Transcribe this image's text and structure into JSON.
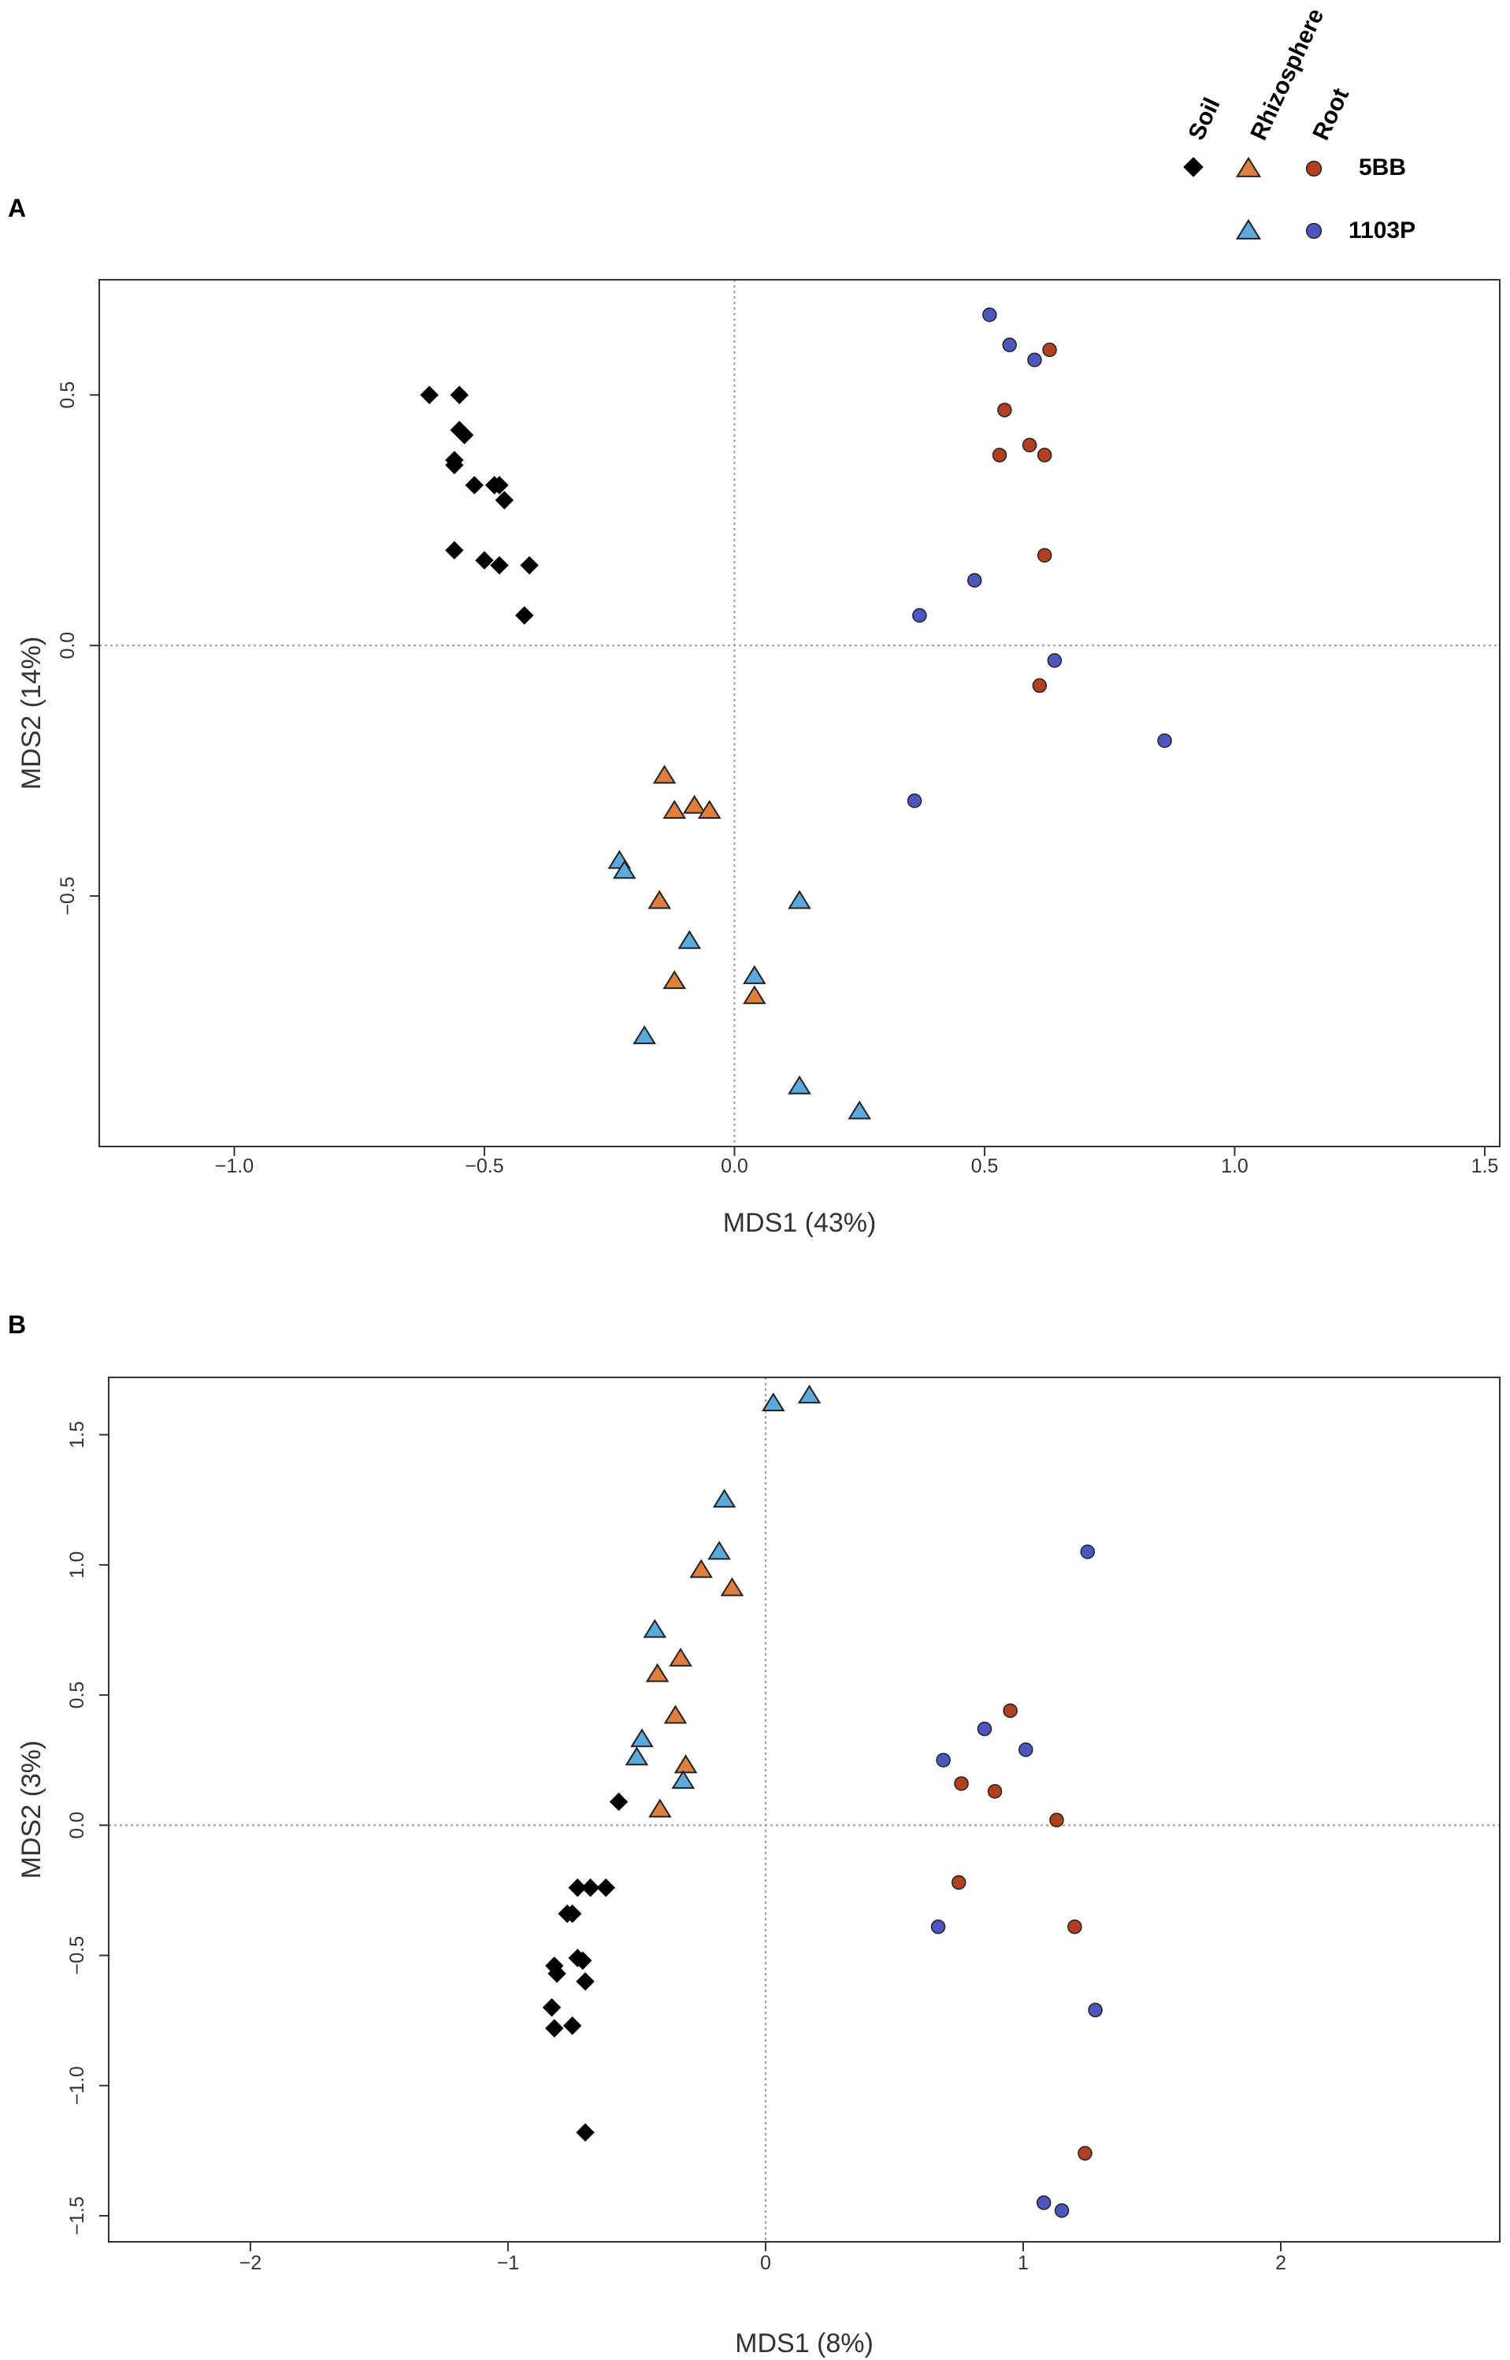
{
  "legend": {
    "headers": [
      "Soil",
      "Rhizosphere",
      "Root"
    ],
    "rows": [
      {
        "label": "5BB",
        "markers": [
          "soil",
          "rhizo_5BB",
          "root_5BB"
        ]
      },
      {
        "label": "1103P",
        "markers": [
          "rhizo_1103P",
          "root_1103P"
        ]
      }
    ]
  },
  "colors": {
    "soil": "#000000",
    "rhizo_5BB": "#E07F3C",
    "rhizo_1103P": "#5BAADE",
    "root_5BB": "#B2401F",
    "root_1103P": "#4D56BF"
  },
  "chart_data": [
    {
      "panel": "A",
      "type": "scatter",
      "xlabel": "MDS1 (43%)",
      "ylabel": "MDS2 (14%)",
      "xlim": [
        -1.27,
        1.53
      ],
      "ylim": [
        -1.0,
        0.73
      ],
      "xticks": [
        -1.0,
        -0.5,
        0.0,
        0.5,
        1.0,
        1.5
      ],
      "xtick_labels": [
        "−1.0",
        "−0.5",
        "0.0",
        "0.5",
        "1.0",
        "1.5"
      ],
      "yticks": [
        0.5,
        0.0,
        -0.5
      ],
      "ytick_labels": [
        "0.5",
        "0.0",
        "−0.5"
      ],
      "reference_lines": {
        "x": 0,
        "y": 0
      },
      "series": [
        {
          "name": "Soil",
          "marker": "diamond",
          "color_key": "soil",
          "points": [
            [
              -0.61,
              0.5
            ],
            [
              -0.55,
              0.5
            ],
            [
              -0.55,
              0.43
            ],
            [
              -0.54,
              0.42
            ],
            [
              -0.56,
              0.37
            ],
            [
              -0.56,
              0.36
            ],
            [
              -0.52,
              0.32
            ],
            [
              -0.48,
              0.32
            ],
            [
              -0.47,
              0.32
            ],
            [
              -0.46,
              0.29
            ],
            [
              -0.56,
              0.19
            ],
            [
              -0.5,
              0.17
            ],
            [
              -0.47,
              0.16
            ],
            [
              -0.41,
              0.16
            ],
            [
              -0.42,
              0.06
            ]
          ]
        },
        {
          "name": "Rhizosphere 5BB",
          "marker": "triangle",
          "color_key": "rhizo_5BB",
          "points": [
            [
              -0.14,
              -0.26
            ],
            [
              -0.12,
              -0.33
            ],
            [
              -0.08,
              -0.32
            ],
            [
              -0.05,
              -0.33
            ],
            [
              -0.15,
              -0.51
            ],
            [
              -0.12,
              -0.67
            ],
            [
              0.04,
              -0.7
            ]
          ]
        },
        {
          "name": "Rhizosphere 1103P",
          "marker": "triangle",
          "color_key": "rhizo_1103P",
          "points": [
            [
              -0.23,
              -0.43
            ],
            [
              -0.22,
              -0.45
            ],
            [
              -0.09,
              -0.59
            ],
            [
              -0.18,
              -0.78
            ],
            [
              0.04,
              -0.66
            ],
            [
              0.13,
              -0.51
            ],
            [
              0.13,
              -0.88
            ],
            [
              0.25,
              -0.93
            ]
          ]
        },
        {
          "name": "Root 5BB",
          "marker": "circle",
          "color_key": "root_5BB",
          "points": [
            [
              0.63,
              0.59
            ],
            [
              0.54,
              0.47
            ],
            [
              0.59,
              0.4
            ],
            [
              0.53,
              0.38
            ],
            [
              0.62,
              0.38
            ],
            [
              0.62,
              0.18
            ],
            [
              0.61,
              -0.08
            ]
          ]
        },
        {
          "name": "Root 1103P",
          "marker": "circle",
          "color_key": "root_1103P",
          "points": [
            [
              0.51,
              0.66
            ],
            [
              0.55,
              0.6
            ],
            [
              0.6,
              0.57
            ],
            [
              0.48,
              0.13
            ],
            [
              0.37,
              0.06
            ],
            [
              0.64,
              -0.03
            ],
            [
              0.86,
              -0.19
            ],
            [
              0.36,
              -0.31
            ]
          ]
        }
      ]
    },
    {
      "panel": "B",
      "type": "scatter",
      "xlabel": "MDS1 (8%)",
      "ylabel": "MDS2 (3%)",
      "xlim": [
        -2.55,
        2.85
      ],
      "ylim": [
        -1.6,
        1.72
      ],
      "xticks": [
        -2,
        -1,
        0,
        1,
        2
      ],
      "xtick_labels": [
        "−2",
        "−1",
        "0",
        "1",
        "2"
      ],
      "yticks": [
        1.5,
        1.0,
        0.5,
        0.0,
        -0.5,
        -1.0,
        -1.5
      ],
      "ytick_labels": [
        "1.5",
        "1.0",
        "0.5",
        "0.0",
        "−0.5",
        "−1.0",
        "−1.5"
      ],
      "reference_lines": {
        "x": 0,
        "y": 0
      },
      "series": [
        {
          "name": "Soil",
          "marker": "diamond",
          "color_key": "soil",
          "points": [
            [
              -0.57,
              0.09
            ],
            [
              -0.73,
              -0.24
            ],
            [
              -0.68,
              -0.24
            ],
            [
              -0.62,
              -0.24
            ],
            [
              -0.77,
              -0.34
            ],
            [
              -0.75,
              -0.34
            ],
            [
              -0.73,
              -0.51
            ],
            [
              -0.71,
              -0.52
            ],
            [
              -0.82,
              -0.54
            ],
            [
              -0.81,
              -0.57
            ],
            [
              -0.7,
              -0.6
            ],
            [
              -0.83,
              -0.7
            ],
            [
              -0.82,
              -0.78
            ],
            [
              -0.75,
              -0.77
            ],
            [
              -0.7,
              -1.18
            ]
          ]
        },
        {
          "name": "Rhizosphere 5BB",
          "marker": "triangle",
          "color_key": "rhizo_5BB",
          "points": [
            [
              -0.25,
              0.98
            ],
            [
              -0.13,
              0.91
            ],
            [
              -0.33,
              0.64
            ],
            [
              -0.42,
              0.58
            ],
            [
              -0.35,
              0.42
            ],
            [
              -0.31,
              0.23
            ],
            [
              -0.41,
              0.06
            ]
          ]
        },
        {
          "name": "Rhizosphere 1103P",
          "marker": "triangle",
          "color_key": "rhizo_1103P",
          "points": [
            [
              0.03,
              1.62
            ],
            [
              0.17,
              1.65
            ],
            [
              -0.16,
              1.25
            ],
            [
              -0.18,
              1.05
            ],
            [
              -0.43,
              0.75
            ],
            [
              -0.48,
              0.33
            ],
            [
              -0.5,
              0.26
            ],
            [
              -0.32,
              0.17
            ]
          ]
        },
        {
          "name": "Root 5BB",
          "marker": "circle",
          "color_key": "root_5BB",
          "points": [
            [
              0.95,
              0.44
            ],
            [
              0.76,
              0.16
            ],
            [
              0.89,
              0.13
            ],
            [
              1.13,
              0.02
            ],
            [
              0.75,
              -0.22
            ],
            [
              1.2,
              -0.39
            ],
            [
              1.24,
              -1.26
            ]
          ]
        },
        {
          "name": "Root 1103P",
          "marker": "circle",
          "color_key": "root_1103P",
          "points": [
            [
              1.25,
              1.05
            ],
            [
              0.85,
              0.37
            ],
            [
              1.01,
              0.29
            ],
            [
              0.69,
              0.25
            ],
            [
              0.67,
              -0.39
            ],
            [
              1.28,
              -0.71
            ],
            [
              1.08,
              -1.45
            ],
            [
              1.15,
              -1.48
            ]
          ]
        }
      ]
    }
  ]
}
